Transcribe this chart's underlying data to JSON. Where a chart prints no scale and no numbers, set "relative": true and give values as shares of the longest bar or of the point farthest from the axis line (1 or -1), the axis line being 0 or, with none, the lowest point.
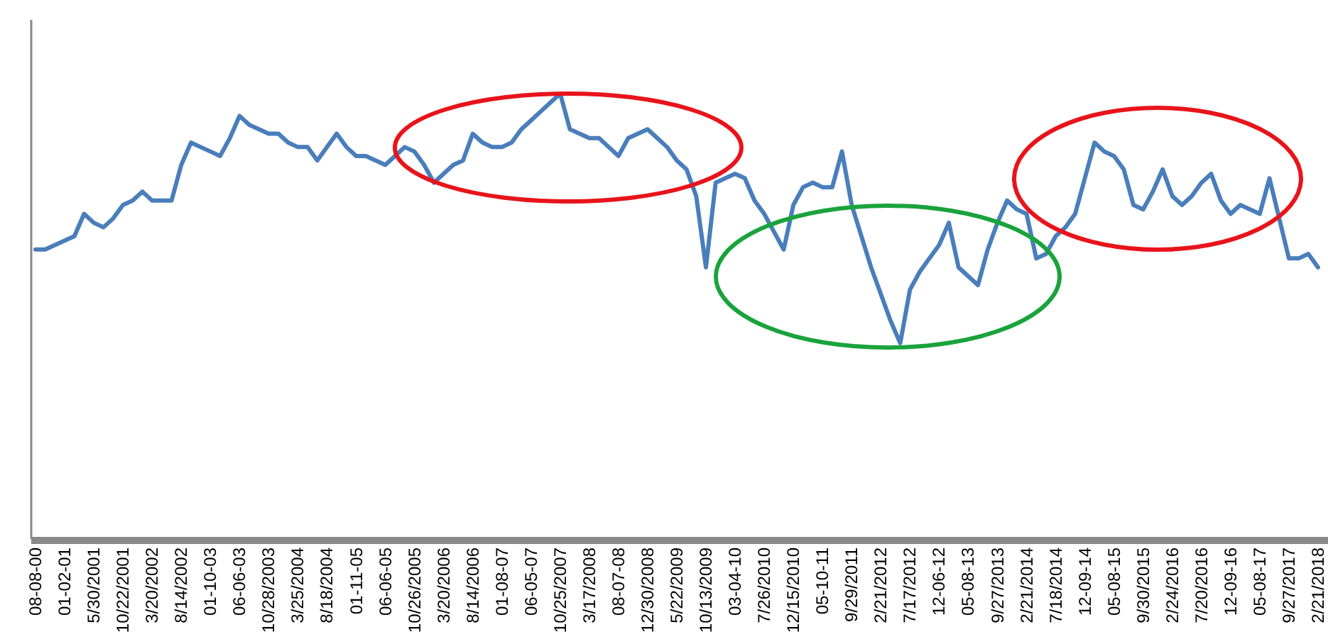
{
  "chart_data": {
    "type": "line",
    "relative": true,
    "line_style": "solid",
    "categories": [
      "08-08-00",
      null,
      null,
      "01-02-01",
      null,
      null,
      "5/30/2001",
      null,
      null,
      "10/22/2001",
      null,
      null,
      "3/20/2002",
      null,
      null,
      "8/14/2002",
      null,
      null,
      "01-10-03",
      null,
      null,
      "06-06-03",
      null,
      null,
      "10/28/2003",
      null,
      null,
      "3/25/2004",
      null,
      null,
      "8/18/2004",
      null,
      null,
      "01-11-05",
      null,
      null,
      "06-06-05",
      null,
      null,
      "10/26/2005",
      null,
      null,
      "3/20/2006",
      null,
      null,
      "8/14/2006",
      null,
      null,
      "01-08-07",
      null,
      null,
      "06-05-07",
      null,
      null,
      "10/25/2007",
      null,
      null,
      "3/17/2008",
      null,
      null,
      "08-07-08",
      null,
      null,
      "12/30/2008",
      null,
      null,
      "5/22/2009",
      null,
      null,
      "10/13/2009",
      null,
      null,
      "03-04-10",
      null,
      null,
      "7/26/2010",
      null,
      null,
      "12/15/2010",
      null,
      null,
      "05-10-11",
      null,
      null,
      "9/29/2011",
      null,
      null,
      "2/21/2012",
      null,
      null,
      "7/17/2012",
      null,
      null,
      "12-06-12",
      null,
      null,
      "05-08-13",
      null,
      null,
      "9/27/2013",
      null,
      null,
      "2/21/2014",
      null,
      null,
      "7/18/2014",
      null,
      null,
      "12-09-14",
      null,
      null,
      "05-08-15",
      null,
      null,
      "9/30/2015",
      null,
      null,
      "2/24/2016",
      null,
      null,
      "7/20/2016",
      null,
      null,
      "12-09-16",
      null,
      null,
      "05-08-17",
      null,
      null,
      "9/27/2017",
      null,
      null,
      "2/21/2018"
    ],
    "series": [
      {
        "color": "#4a7ebb",
        "values": [
          0.65,
          0.65,
          0.66,
          0.67,
          0.68,
          0.73,
          0.71,
          0.7,
          0.72,
          0.75,
          0.76,
          0.78,
          0.76,
          0.76,
          0.76,
          0.84,
          0.89,
          0.88,
          0.87,
          0.86,
          0.9,
          0.95,
          0.93,
          0.92,
          0.91,
          0.91,
          0.89,
          0.88,
          0.88,
          0.85,
          0.88,
          0.91,
          0.88,
          0.86,
          0.86,
          0.85,
          0.84,
          0.86,
          0.88,
          0.87,
          0.84,
          0.8,
          0.82,
          0.84,
          0.85,
          0.91,
          0.89,
          0.88,
          0.88,
          0.89,
          0.92,
          0.94,
          0.96,
          0.98,
          1,
          0.92,
          0.91,
          0.9,
          0.9,
          0.88,
          0.86,
          0.9,
          0.91,
          0.92,
          0.9,
          0.88,
          0.85,
          0.83,
          0.77,
          0.61,
          0.8,
          0.81,
          0.82,
          0.81,
          0.76,
          0.73,
          0.69,
          0.65,
          0.75,
          0.79,
          0.8,
          0.79,
          0.79,
          0.87,
          0.75,
          0.68,
          0.61,
          0.55,
          0.49,
          0.44,
          0.56,
          0.6,
          0.63,
          0.66,
          0.71,
          0.61,
          0.59,
          0.57,
          0.65,
          0.71,
          0.76,
          0.74,
          0.73,
          0.63,
          0.64,
          0.68,
          0.7,
          0.73,
          0.81,
          0.89,
          0.87,
          0.86,
          0.83,
          0.75,
          0.74,
          0.78,
          0.83,
          0.77,
          0.75,
          0.77,
          0.8,
          0.82,
          0.76,
          0.73,
          0.75,
          0.74,
          0.73,
          0.81,
          0.72,
          0.63,
          0.63,
          0.64,
          0.61
        ]
      }
    ]
  }
}
